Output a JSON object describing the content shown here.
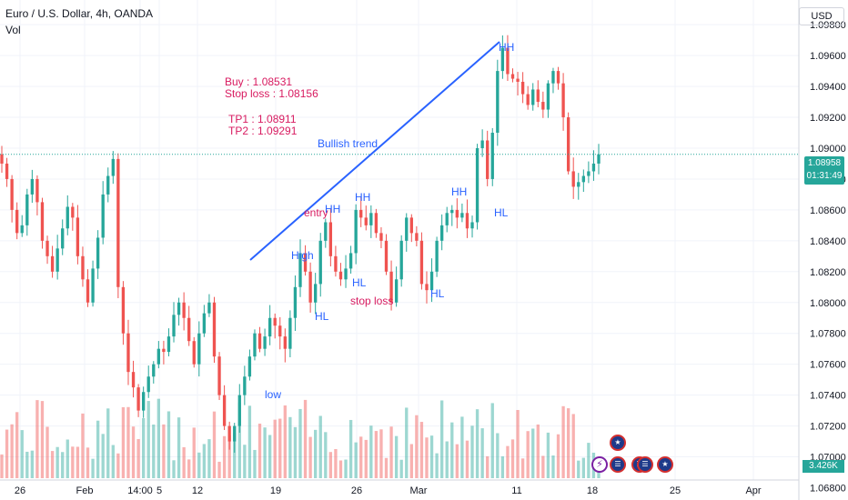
{
  "header": {
    "symbol_line": "Euro / U.S. Dollar, 4h, OANDA",
    "indicator": "Vol"
  },
  "currency_button": "USD",
  "last_price": {
    "value": "1.08958",
    "countdown": "01:31:49"
  },
  "volume_value": "3.426K",
  "colors": {
    "up": "#26a69a",
    "down": "#ef5350",
    "trend": "#2962ff",
    "blue_text": "#2962ff",
    "pink_text": "#d81b60"
  },
  "chart_data": {
    "type": "candlestick",
    "title": "",
    "ylim": [
      1.0685,
      1.0996
    ],
    "y_ticks": [
      "1.09800",
      "1.09600",
      "1.09400",
      "1.09200",
      "1.09000",
      "1.08800",
      "1.08600",
      "1.08400",
      "1.08200",
      "1.08000",
      "1.07800",
      "1.07600",
      "1.07400",
      "1.07200",
      "1.07000",
      "1.06800"
    ],
    "x_ticks": [
      "26",
      "Feb",
      "14:00",
      "5",
      "12",
      "19",
      "26",
      "Mar",
      "11",
      "18",
      "25",
      "Apr"
    ],
    "candles_close": [
      1.089,
      1.088,
      1.086,
      1.0845,
      1.085,
      1.087,
      1.088,
      1.0865,
      1.084,
      1.083,
      1.082,
      1.0835,
      1.0848,
      1.0862,
      1.0855,
      1.083,
      1.0815,
      1.08,
      1.0822,
      1.0842,
      1.087,
      1.0882,
      1.0893,
      1.081,
      1.078,
      1.0755,
      1.0745,
      1.073,
      1.0742,
      1.0752,
      1.076,
      1.077,
      1.0768,
      1.0778,
      1.0792,
      1.08,
      1.079,
      1.0775,
      1.076,
      1.078,
      1.0793,
      1.08,
      1.0765,
      1.074,
      1.072,
      1.071,
      1.072,
      1.074,
      1.0752,
      1.0765,
      1.078,
      1.077,
      1.0778,
      1.079,
      1.0785,
      1.0778,
      1.077,
      1.079,
      1.081,
      1.0832,
      1.082,
      1.08,
      1.0812,
      1.084,
      1.0852,
      1.083,
      1.082,
      1.0815,
      1.0822,
      1.0832,
      1.086,
      1.0855,
      1.085,
      1.0858,
      1.0845,
      1.084,
      1.082,
      1.08,
      1.0815,
      1.084,
      1.0855,
      1.0845,
      1.084,
      1.0812,
      1.0808,
      1.082,
      1.084,
      1.085,
      1.0858,
      1.086,
      1.0855,
      1.0858,
      1.0848,
      1.0852,
      1.09,
      1.0905,
      1.088,
      1.091,
      1.095,
      1.0965,
      1.0948,
      1.0945,
      1.0943,
      1.0935,
      1.0928,
      1.0938,
      1.093,
      1.0925,
      1.0942,
      1.095,
      1.0942,
      1.092,
      1.0885,
      1.0875,
      1.0878,
      1.0882,
      1.0885,
      1.089,
      1.0896
    ],
    "annotations": [
      {
        "text": "Buy : 1.08531",
        "color": "pink"
      },
      {
        "text": "Stop loss : 1.08156",
        "color": "pink"
      },
      {
        "text": "TP1 : 1.08911",
        "color": "pink"
      },
      {
        "text": "TP2 : 1.09291",
        "color": "pink"
      },
      {
        "text": "Bullish trend",
        "color": "blue"
      },
      {
        "text": "HH",
        "color": "blue"
      },
      {
        "text": "HL",
        "color": "blue"
      },
      {
        "text": "HH",
        "color": "blue"
      },
      {
        "text": "HH",
        "color": "blue"
      },
      {
        "text": "entry",
        "color": "pink"
      },
      {
        "text": "HH",
        "color": "blue"
      },
      {
        "text": "High",
        "color": "blue"
      },
      {
        "text": "HL",
        "color": "blue"
      },
      {
        "text": "stop loss",
        "color": "pink"
      },
      {
        "text": "HL",
        "color": "blue"
      },
      {
        "text": "HL",
        "color": "blue"
      },
      {
        "text": "low",
        "color": "blue"
      }
    ]
  }
}
